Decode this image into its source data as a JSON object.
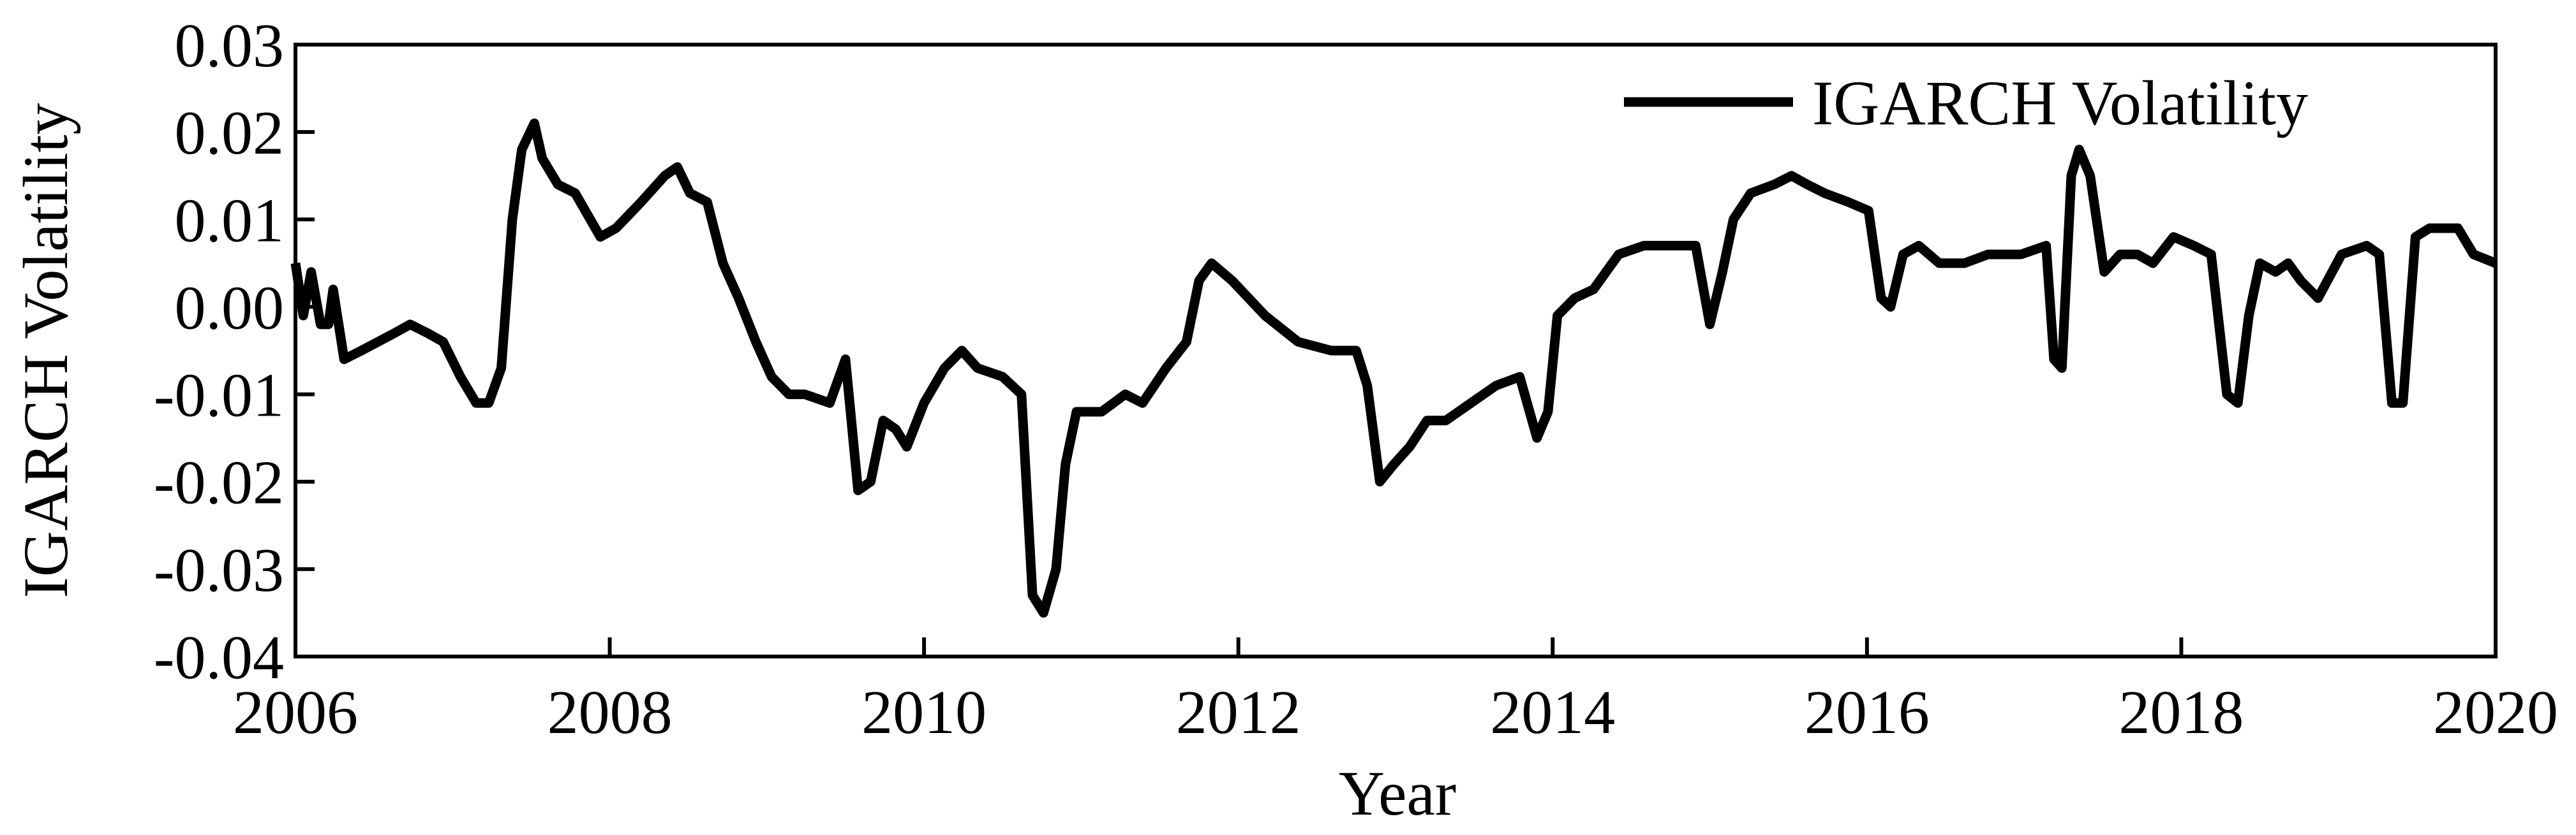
{
  "chart_data": {
    "type": "line",
    "x_label": "Year",
    "y_label": "IGARCH Volatility",
    "legend": "upper right",
    "x": [
      2006.0,
      2006.05,
      2006.1,
      2006.16,
      2006.21,
      2006.24,
      2006.31,
      2006.42,
      2006.63,
      2006.73,
      2006.84,
      2006.94,
      2007.05,
      2007.15,
      2007.23,
      2007.31,
      2007.38,
      2007.44,
      2007.52,
      2007.57,
      2007.67,
      2007.78,
      2007.94,
      2008.04,
      2008.2,
      2008.35,
      2008.43,
      2008.51,
      2008.62,
      2008.72,
      2008.82,
      2008.93,
      2009.03,
      2009.14,
      2009.24,
      2009.4,
      2009.5,
      2009.58,
      2009.66,
      2009.74,
      2009.82,
      2009.89,
      2010.0,
      2010.13,
      2010.24,
      2010.34,
      2010.5,
      2010.62,
      2010.69,
      2010.76,
      2010.84,
      2010.9,
      2010.97,
      2011.13,
      2011.28,
      2011.39,
      2011.54,
      2011.67,
      2011.75,
      2011.83,
      2011.96,
      2012.17,
      2012.38,
      2012.59,
      2012.75,
      2012.82,
      2012.9,
      2012.99,
      2013.09,
      2013.2,
      2013.32,
      2013.48,
      2013.64,
      2013.79,
      2013.9,
      2013.97,
      2014.03,
      2014.14,
      2014.26,
      2014.42,
      2014.58,
      2014.79,
      2014.91,
      2015.0,
      2015.08,
      2015.15,
      2015.26,
      2015.41,
      2015.52,
      2015.62,
      2015.73,
      2015.88,
      2016.01,
      2016.09,
      2016.15,
      2016.23,
      2016.33,
      2016.46,
      2016.62,
      2016.77,
      2016.98,
      2017.14,
      2017.19,
      2017.24,
      2017.3,
      2017.35,
      2017.42,
      2017.51,
      2017.61,
      2017.72,
      2017.82,
      2017.95,
      2018.08,
      2018.19,
      2018.29,
      2018.36,
      2018.43,
      2018.5,
      2018.6,
      2018.68,
      2018.76,
      2018.87,
      2019.02,
      2019.18,
      2019.26,
      2019.34,
      2019.41,
      2019.49,
      2019.58,
      2019.76,
      2019.86,
      2020.0
    ],
    "series": [
      {
        "name": "IGARCH Volatility",
        "color": "#000000",
        "values": [
          0.005,
          -0.001,
          0.004,
          -0.002,
          -0.002,
          0.002,
          -0.006,
          -0.005,
          -0.003,
          -0.002,
          -0.003,
          -0.004,
          -0.008,
          -0.011,
          -0.011,
          -0.007,
          0.01,
          0.018,
          0.021,
          0.017,
          0.014,
          0.013,
          0.008,
          0.009,
          0.012,
          0.015,
          0.016,
          0.013,
          0.012,
          0.005,
          0.001,
          -0.004,
          -0.008,
          -0.01,
          -0.01,
          -0.011,
          -0.006,
          -0.021,
          -0.02,
          -0.013,
          -0.014,
          -0.016,
          -0.011,
          -0.007,
          -0.005,
          -0.007,
          -0.008,
          -0.01,
          -0.033,
          -0.035,
          -0.03,
          -0.018,
          -0.012,
          -0.012,
          -0.01,
          -0.011,
          -0.007,
          -0.004,
          0.003,
          0.005,
          0.003,
          -0.001,
          -0.004,
          -0.005,
          -0.005,
          -0.009,
          -0.02,
          -0.018,
          -0.016,
          -0.013,
          -0.013,
          -0.011,
          -0.009,
          -0.008,
          -0.015,
          -0.012,
          -0.001,
          0.001,
          0.002,
          0.006,
          0.007,
          0.007,
          0.007,
          -0.002,
          0.004,
          0.01,
          0.013,
          0.014,
          0.015,
          0.014,
          0.013,
          0.012,
          0.011,
          0.001,
          0.0,
          0.006,
          0.007,
          0.005,
          0.005,
          0.006,
          0.006,
          0.007,
          -0.006,
          -0.007,
          0.015,
          0.018,
          0.015,
          0.004,
          0.006,
          0.006,
          0.005,
          0.008,
          0.007,
          0.006,
          -0.01,
          -0.011,
          -0.001,
          0.005,
          0.004,
          0.005,
          0.003,
          0.001,
          0.006,
          0.007,
          0.006,
          -0.011,
          -0.011,
          0.008,
          0.009,
          0.009,
          0.006,
          0.005
        ]
      }
    ],
    "xlim": [
      2006,
      2020
    ],
    "xticks": [
      2006,
      2008,
      2010,
      2012,
      2014,
      2016,
      2018,
      2020
    ],
    "ylim": [
      -0.04,
      0.03
    ],
    "yticks": [
      -0.04,
      -0.03,
      -0.02,
      -0.01,
      {
        "value": 0,
        "label": "0.00"
      },
      0.01,
      0.02,
      0.03
    ]
  }
}
